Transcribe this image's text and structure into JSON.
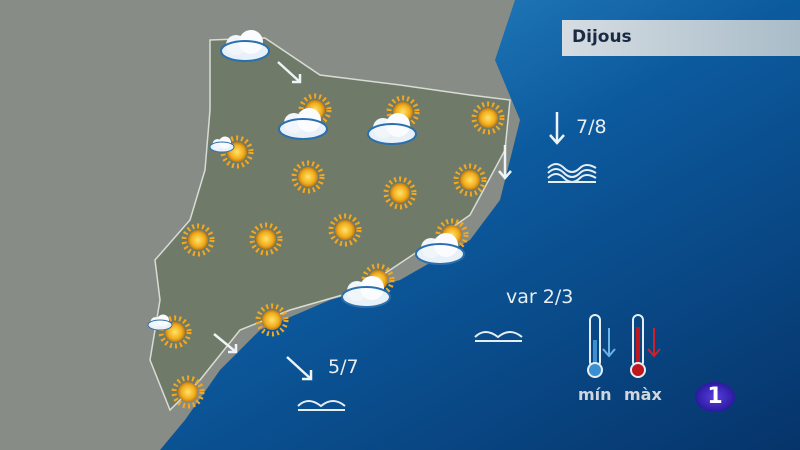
{
  "header": {
    "day": "Dijous"
  },
  "sea_forecasts": [
    {
      "label": "7/8",
      "wind_direction": "south",
      "sea_state_icon": "rough-waves-icon"
    },
    {
      "label": "var 2/3",
      "wind_direction": "variable",
      "sea_state_icon": "calm-waves-icon"
    },
    {
      "label": "5/7",
      "wind_direction": "southeast",
      "sea_state_icon": "calm-waves-icon"
    }
  ],
  "legend": {
    "min_label": "mín",
    "max_label": "màx",
    "min_color": "#3a8fd0",
    "max_color": "#c0161e",
    "min_trend": "down",
    "max_trend": "down"
  },
  "logo": {
    "text": "1"
  },
  "colors": {
    "land": "#7d8378",
    "sea": "#0a5aa0",
    "sun": "#f2b824"
  }
}
